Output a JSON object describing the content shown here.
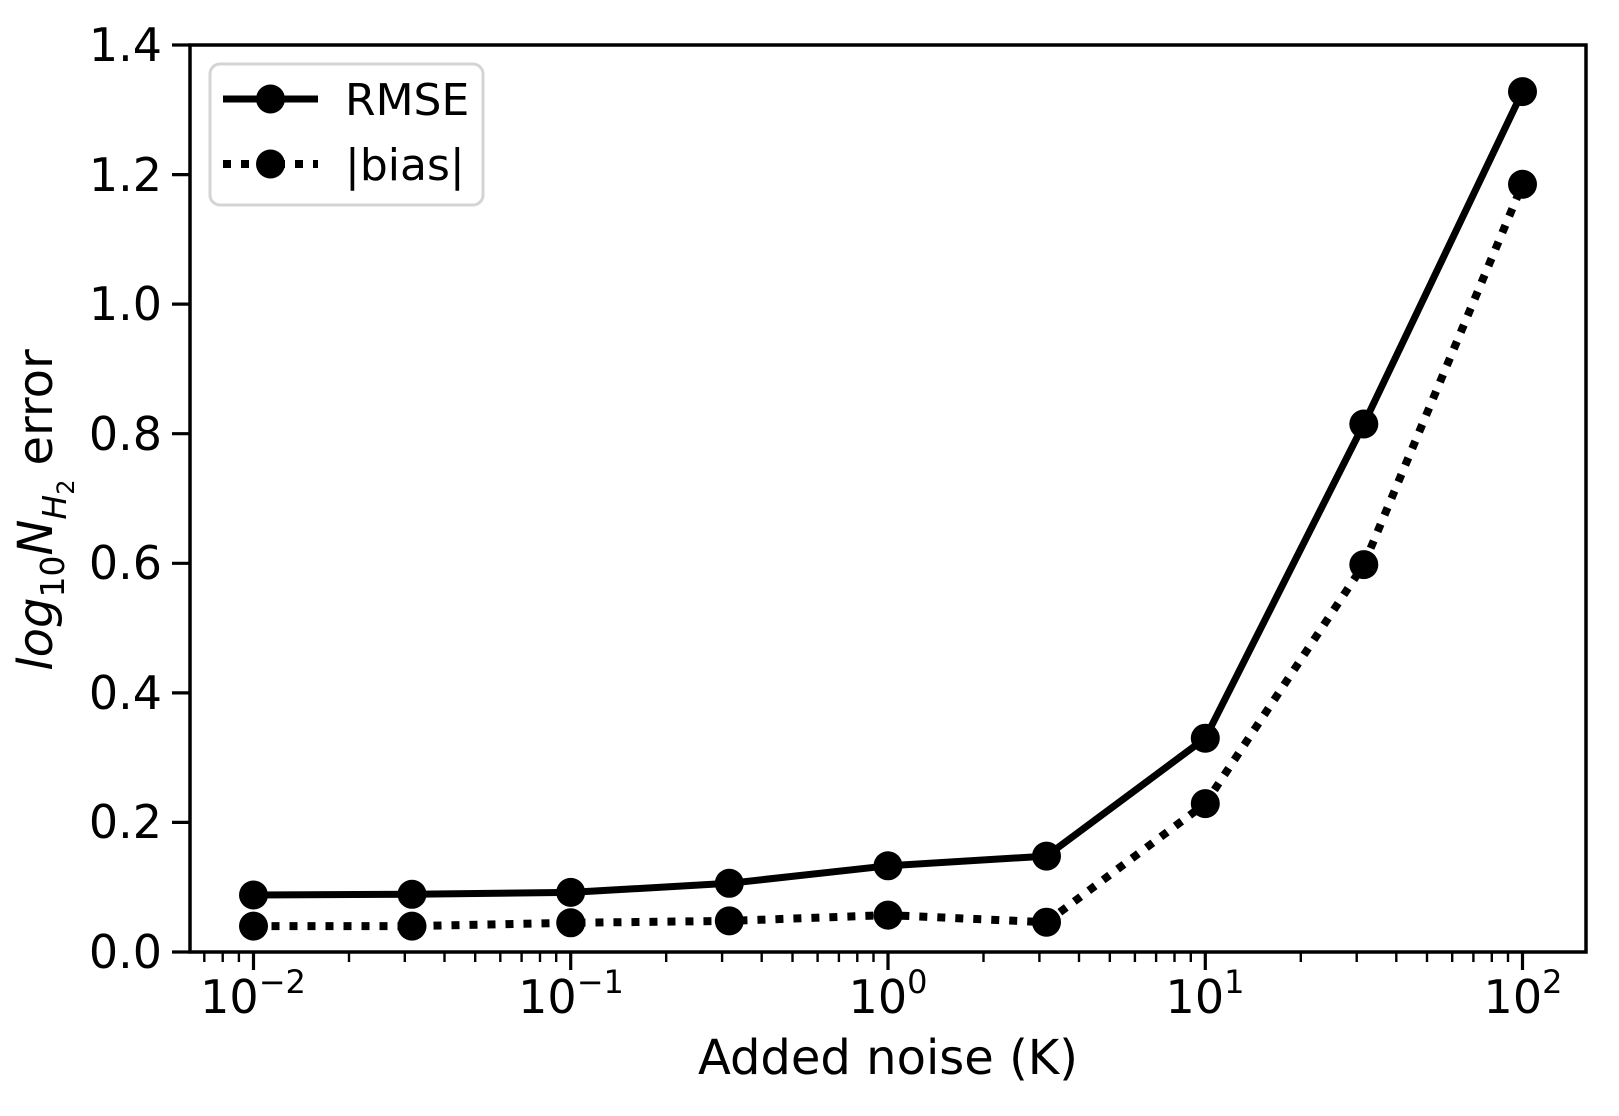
{
  "figure": {
    "background_color": "#ffffff",
    "foreground_color": "#000000"
  },
  "chart_data": {
    "type": "line",
    "title": "",
    "xlabel": "Added noise (K)",
    "ylabel": "log10 N_H2 error",
    "ylabel_parts": [
      {
        "text": "log",
        "style": "italic"
      },
      {
        "text": "10",
        "style": "subscript"
      },
      {
        "text": "N",
        "style": "italic"
      },
      {
        "text": "H",
        "style": "italic-subscript"
      },
      {
        "text": "2",
        "style": "sub-subscript"
      },
      {
        "text": "error",
        "style": "normal"
      }
    ],
    "x_scale": "log",
    "y_scale": "linear",
    "xlim_log10": [
      -2.2,
      2.2
    ],
    "ylim": [
      0,
      1.4
    ],
    "grid": false,
    "x": [
      0.01,
      0.0316,
      0.1,
      0.316,
      1,
      3.16,
      10,
      31.6,
      100
    ],
    "series": [
      {
        "name": "RMSE",
        "line_style": "solid",
        "marker": "circle",
        "color": "#000000",
        "values": [
          0.088,
          0.089,
          0.092,
          0.106,
          0.133,
          0.148,
          0.33,
          0.815,
          1.328
        ]
      },
      {
        "name": "|bias|",
        "line_style": "dotted",
        "marker": "circle",
        "color": "#000000",
        "values": [
          0.04,
          0.04,
          0.045,
          0.048,
          0.057,
          0.046,
          0.229,
          0.598,
          1.185
        ]
      }
    ],
    "x_tick_exponents": [
      -2,
      -1,
      0,
      1,
      2
    ],
    "x_tick_labels": [
      {
        "base": "10",
        "exp": "−2"
      },
      {
        "base": "10",
        "exp": "−1"
      },
      {
        "base": "10",
        "exp": "0"
      },
      {
        "base": "10",
        "exp": "1"
      },
      {
        "base": "10",
        "exp": "2"
      }
    ],
    "y_ticks": [
      0.0,
      0.2,
      0.4,
      0.6,
      0.8,
      1.0,
      1.2,
      1.4
    ],
    "y_tick_labels": [
      "0.0",
      "0.2",
      "0.4",
      "0.6",
      "0.8",
      "1.0",
      "1.2",
      "1.4"
    ],
    "legend": {
      "position": "upper-left",
      "entries": [
        "RMSE",
        "|bias|"
      ]
    }
  }
}
